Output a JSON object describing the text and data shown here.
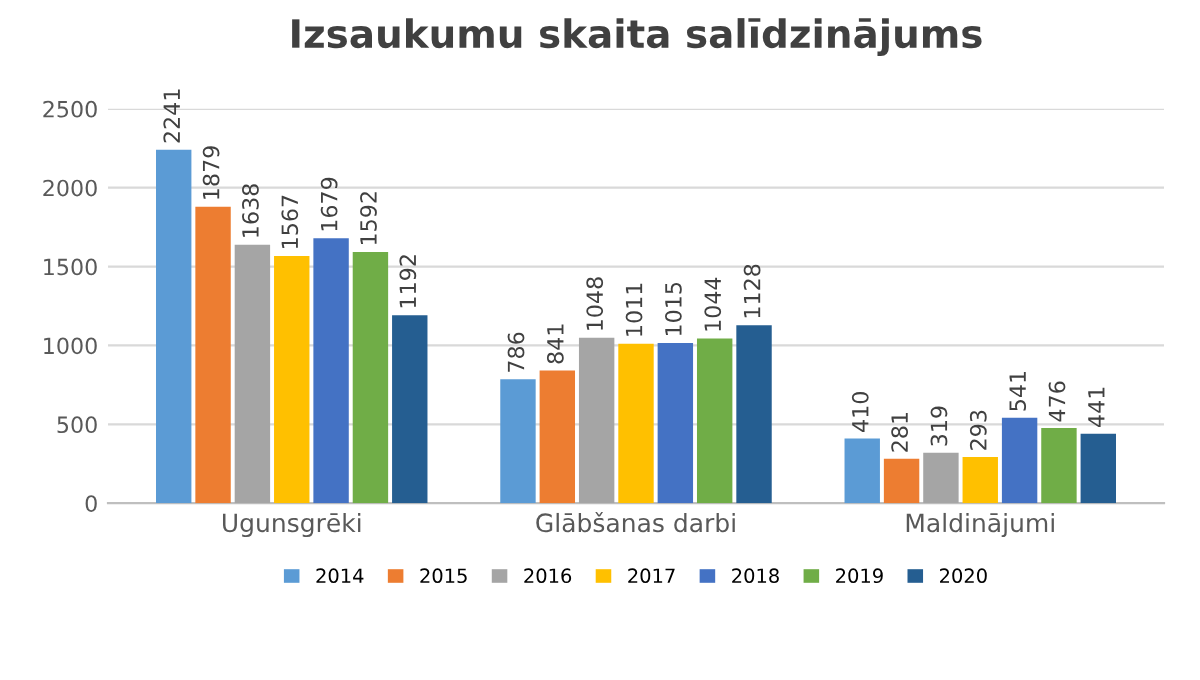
{
  "chart_data": {
    "type": "bar",
    "title": "Izsaukumu skaita salīdzinājums",
    "categories": [
      "Ugunsgrēki",
      "Glābšanas darbi",
      "Maldinājumi"
    ],
    "series": [
      {
        "name": "2014",
        "color": "#5b9bd5",
        "values": [
          2241,
          786,
          410
        ]
      },
      {
        "name": "2015",
        "color": "#ed7d31",
        "values": [
          1879,
          841,
          281
        ]
      },
      {
        "name": "2016",
        "color": "#a5a5a5",
        "values": [
          1638,
          1048,
          319
        ]
      },
      {
        "name": "2017",
        "color": "#ffc000",
        "values": [
          1567,
          1011,
          293
        ]
      },
      {
        "name": "2018",
        "color": "#4472c4",
        "values": [
          1679,
          1015,
          541
        ]
      },
      {
        "name": "2019",
        "color": "#70ad47",
        "values": [
          1592,
          1044,
          476
        ]
      },
      {
        "name": "2020",
        "color": "#255e91",
        "values": [
          1192,
          1128,
          441
        ]
      }
    ],
    "ylim": [
      0,
      2500
    ],
    "yticks": [
      0,
      500,
      1000,
      1500,
      2000,
      2500
    ],
    "grid": "y",
    "legend": "bottom",
    "data_labels": true
  }
}
